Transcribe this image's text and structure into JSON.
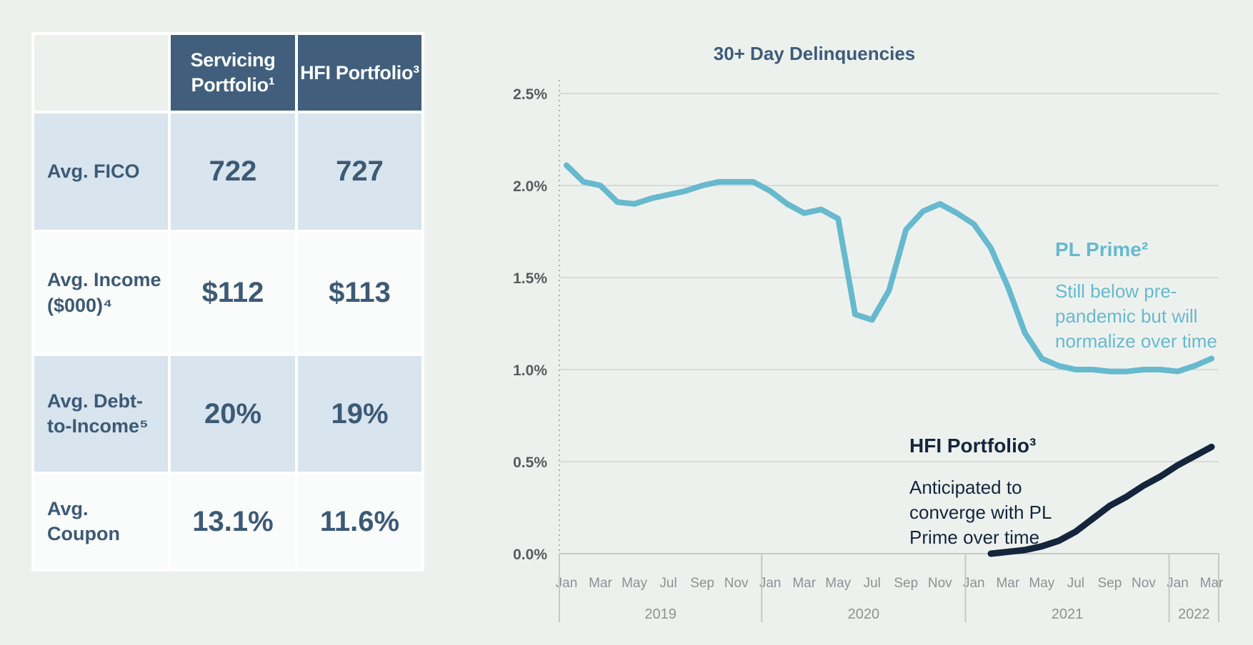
{
  "page": {
    "background": "#edf1ee"
  },
  "table": {
    "header": {
      "servicing": "Servicing\nPortfolio¹",
      "hfi": "HFI Portfolio³"
    },
    "rows": [
      {
        "label": "Avg. FICO",
        "servicing": "722",
        "hfi": "727"
      },
      {
        "label": "Avg. Income\n($000)⁴",
        "servicing": "$112",
        "hfi": "$113"
      },
      {
        "label": "Avg. Debt-\nto-Income⁵",
        "servicing": "20%",
        "hfi": "19%"
      },
      {
        "label": "Avg. Coupon",
        "servicing": "13.1%",
        "hfi": "11.6%"
      }
    ],
    "colors": {
      "header_bg": "#415f7c",
      "row_alt_bg": "#d8e4ee",
      "row_bg": "#fafbfb",
      "text": "#3c5a75"
    }
  },
  "chart_data": {
    "type": "line",
    "title": "30+ Day Delinquencies",
    "ylabel": "",
    "xlabel": "",
    "ylim": [
      0,
      2.5
    ],
    "grid": "horizontal",
    "legend_position": "inline-annotations",
    "y_axis": {
      "ticks": [
        {
          "label": "2.5%",
          "value": 2.5
        },
        {
          "label": "2.0%",
          "value": 2.0
        },
        {
          "label": "1.5%",
          "value": 1.5
        },
        {
          "label": "1.0%",
          "value": 1.0
        },
        {
          "label": "0.5%",
          "value": 0.5
        },
        {
          "label": "0.0%",
          "value": 0.0
        }
      ]
    },
    "x_axis": {
      "unit": "month",
      "range": "Jan 2019 - Mar 2022",
      "tick_labels": [
        "Jan",
        "Mar",
        "May",
        "Jul",
        "Sep",
        "Nov",
        "Jan",
        "Mar",
        "May",
        "Jul",
        "Sep",
        "Nov",
        "Jan",
        "Mar",
        "May",
        "Jul",
        "Sep",
        "Nov",
        "Jan",
        "Mar"
      ],
      "years": [
        {
          "label": "2019",
          "start": 0,
          "end": 11
        },
        {
          "label": "2020",
          "start": 12,
          "end": 23
        },
        {
          "label": "2021",
          "start": 24,
          "end": 35
        },
        {
          "label": "2022",
          "start": 36,
          "end": 38
        }
      ]
    },
    "series": [
      {
        "name": "PL Prime²",
        "color": "#67b9ce",
        "stroke_width": 8,
        "start_month": 0,
        "values": [
          2.11,
          2.02,
          2.0,
          1.91,
          1.9,
          1.93,
          1.95,
          1.97,
          2.0,
          2.02,
          2.02,
          2.02,
          1.97,
          1.9,
          1.85,
          1.87,
          1.82,
          1.3,
          1.27,
          1.43,
          1.76,
          1.86,
          1.9,
          1.85,
          1.79,
          1.66,
          1.45,
          1.2,
          1.06,
          1.02,
          1.0,
          1.0,
          0.99,
          0.99,
          1.0,
          1.0,
          0.99,
          1.02,
          1.06
        ]
      },
      {
        "name": "HFI Portfolio³",
        "color": "#14253c",
        "stroke_width": 9,
        "start_month": 25,
        "values": [
          0.0,
          0.01,
          0.02,
          0.04,
          0.07,
          0.12,
          0.19,
          0.26,
          0.31,
          0.37,
          0.42,
          0.48,
          0.53,
          0.58
        ]
      }
    ],
    "annotations": {
      "pl": {
        "title": "PL Prime²",
        "body": "Still below pre-\npandemic but will\nnormalize over time",
        "color": "#67b9ce"
      },
      "hfi": {
        "title": "HFI Portfolio³",
        "body": "Anticipated to\nconverge with PL\nPrime over time",
        "color": "#14253c"
      }
    },
    "colors": {
      "grid": "#d8dbd8",
      "axis": "#c6c9c6",
      "dotted_axis": "#adb0ad",
      "y_tick_text": "#595b5e",
      "x_tick_text": "#8e9193",
      "title_text": "#3d5c78"
    }
  }
}
